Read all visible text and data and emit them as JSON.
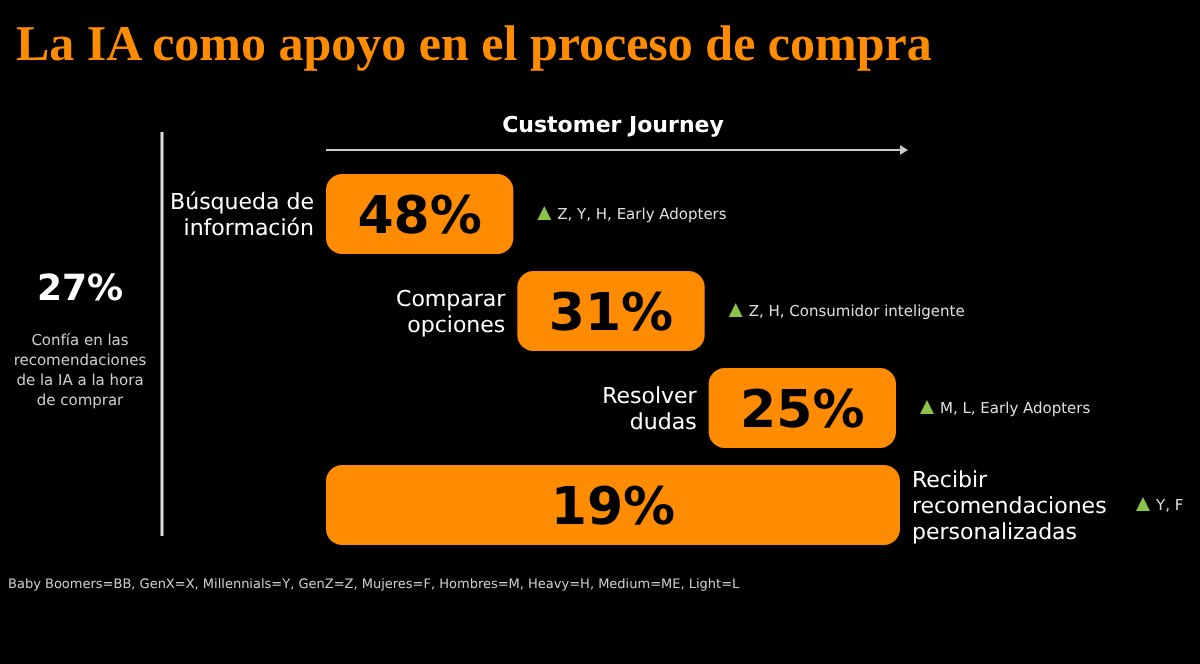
{
  "chart_data": {
    "type": "other",
    "title": "La IA como apoyo en el proceso de compra",
    "xlabel": "Customer Journey",
    "categories": [
      "Búsqueda de información",
      "Comparar opciones",
      "Resolver dudas",
      "Recibir recomendaciones personalizadas"
    ],
    "values": [
      48,
      31,
      25,
      19
    ],
    "value_labels": [
      "48%",
      "31%",
      "25%",
      "19%"
    ],
    "color": "#ff8c00",
    "annotations": [
      "27%",
      "Confía en las recomendaciones de la IA a la hora de comprar",
      {
        "text": "Z, Y, H, Early Adopters",
        "y": "Búsqueda de información"
      },
      {
        "text": "Z, H, Consumidor inteligente",
        "y": "Comparar opciones"
      },
      {
        "text": "M, L, Early Adopters",
        "y": "Resolver dudas"
      },
      {
        "text": "Y, F",
        "y": "Recibir recomendaciones personalizadas"
      },
      "Baby Boomers=BB, GenX=X, Millennials=Y, GenZ=Z, Mujeres=F, Hombres=M, Heavy=H, Medium=ME, Light=L"
    ]
  }
}
